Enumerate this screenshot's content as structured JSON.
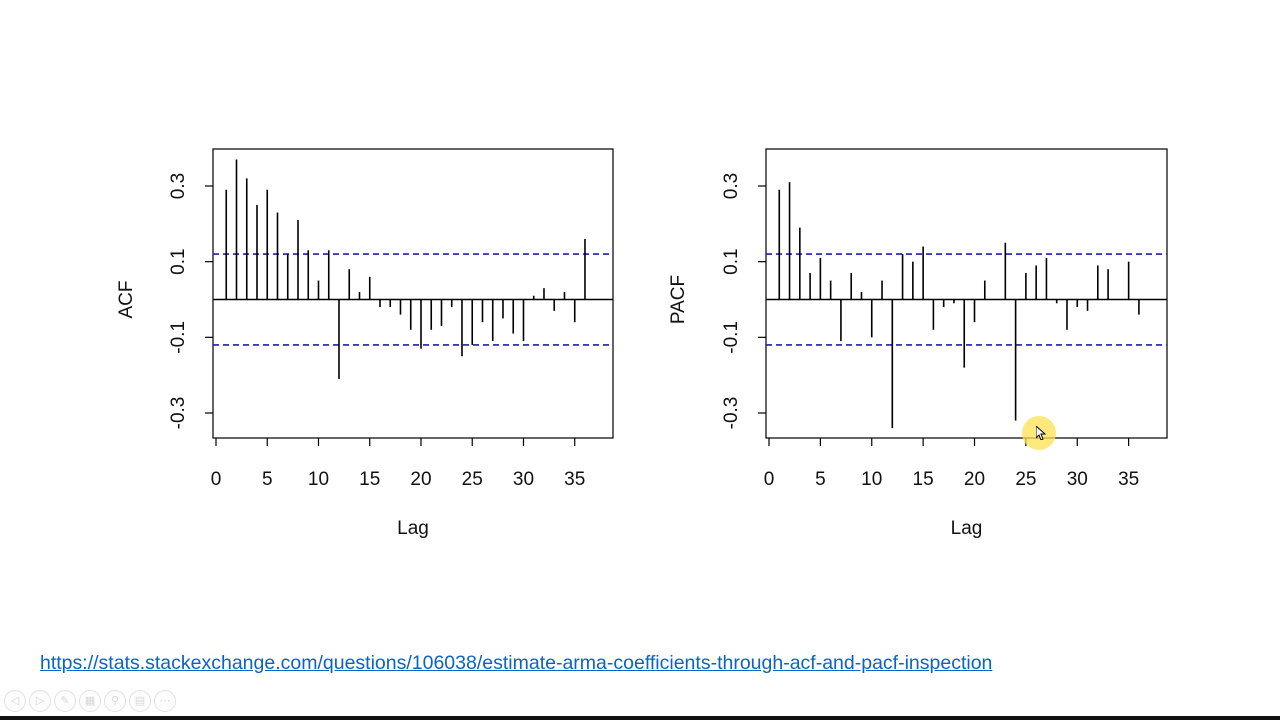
{
  "link": {
    "text": "https://stats.stackexchange.com/questions/106038/estimate-arma-coefficients-through-acf-and-pacf-inspection"
  },
  "colors": {
    "bars": "#000000",
    "confidence_band": "#1f1fb4",
    "link": "#0b63c4",
    "cursor_highlight": "#ffe150"
  },
  "toolbar": {
    "icons": [
      "prev-icon",
      "next-icon",
      "pen-icon",
      "slides-icon",
      "zoom-icon",
      "subtitles-icon",
      "more-icon"
    ]
  },
  "chart_data": [
    {
      "type": "bar",
      "ylabel": "ACF",
      "xlabel": "Lag",
      "xlim": [
        0,
        37
      ],
      "ylim": [
        -0.37,
        0.4
      ],
      "x_ticks": [
        0,
        5,
        10,
        15,
        20,
        25,
        30,
        35
      ],
      "y_ticks": [
        -0.3,
        -0.1,
        0.1,
        0.3
      ],
      "y_tick_labels": [
        "-0.3",
        "-0.1",
        "0.1",
        "0.3"
      ],
      "confidence_bound": 0.12,
      "grid": false,
      "lags": [
        1,
        2,
        3,
        4,
        5,
        6,
        7,
        8,
        9,
        10,
        11,
        12,
        13,
        14,
        15,
        16,
        17,
        18,
        19,
        20,
        21,
        22,
        23,
        24,
        25,
        26,
        27,
        28,
        29,
        30,
        31,
        32,
        33,
        34,
        35,
        36
      ],
      "values": [
        0.29,
        0.37,
        0.32,
        0.25,
        0.29,
        0.23,
        0.12,
        0.21,
        0.13,
        0.05,
        0.13,
        -0.21,
        0.08,
        0.02,
        0.06,
        -0.02,
        -0.02,
        -0.04,
        -0.08,
        -0.13,
        -0.08,
        -0.07,
        -0.02,
        -0.15,
        -0.12,
        -0.06,
        -0.11,
        -0.05,
        -0.09,
        -0.11,
        0.01,
        0.03,
        -0.03,
        0.02,
        -0.06,
        0.16
      ]
    },
    {
      "type": "bar",
      "ylabel": "PACF",
      "xlabel": "Lag",
      "xlim": [
        0,
        37
      ],
      "ylim": [
        -0.37,
        0.4
      ],
      "x_ticks": [
        0,
        5,
        10,
        15,
        20,
        25,
        30,
        35
      ],
      "y_ticks": [
        -0.3,
        -0.1,
        0.1,
        0.3
      ],
      "y_tick_labels": [
        "-0.3",
        "-0.1",
        "0.1",
        "0.3"
      ],
      "confidence_bound": 0.12,
      "grid": false,
      "lags": [
        1,
        2,
        3,
        4,
        5,
        6,
        7,
        8,
        9,
        10,
        11,
        12,
        13,
        14,
        15,
        16,
        17,
        18,
        19,
        20,
        21,
        22,
        23,
        24,
        25,
        26,
        27,
        28,
        29,
        30,
        31,
        32,
        33,
        34,
        35,
        36
      ],
      "values": [
        0.29,
        0.31,
        0.19,
        0.07,
        0.11,
        0.05,
        -0.11,
        0.07,
        0.02,
        -0.1,
        0.05,
        -0.34,
        0.12,
        0.1,
        0.14,
        -0.08,
        -0.02,
        -0.01,
        -0.18,
        -0.06,
        0.05,
        0.0,
        0.15,
        -0.32,
        0.07,
        0.09,
        0.11,
        -0.01,
        -0.08,
        -0.02,
        -0.03,
        0.09,
        0.08,
        0.0,
        0.1,
        -0.04
      ]
    }
  ]
}
